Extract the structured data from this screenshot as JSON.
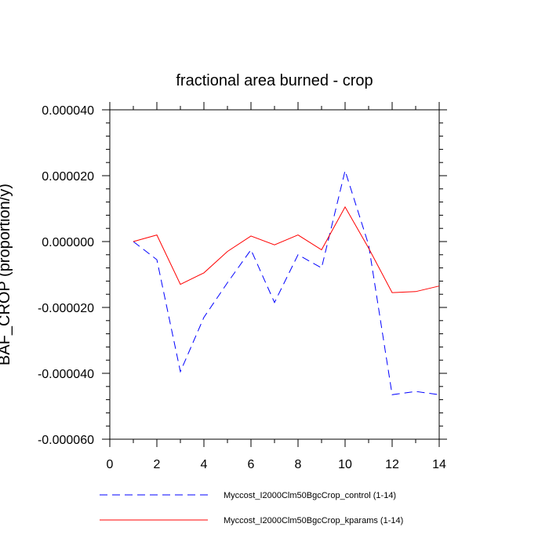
{
  "chart_data": {
    "type": "line",
    "title": "fractional area burned - crop",
    "xlabel": "",
    "ylabel": "BAF_CROP  (proportion/y)",
    "xlim": [
      0,
      14
    ],
    "ylim": [
      -6e-05,
      4e-05
    ],
    "x_ticks": [
      0,
      2,
      4,
      6,
      8,
      10,
      12,
      14
    ],
    "x_tick_labels": [
      "0",
      "2",
      "4",
      "6",
      "8",
      "10",
      "12",
      "14"
    ],
    "y_ticks": [
      -6e-05,
      -4e-05,
      -2e-05,
      0,
      2e-05,
      4e-05
    ],
    "y_tick_labels": [
      "-0.000060",
      "-0.000040",
      "-0.000020",
      "0.000000",
      "0.000020",
      "0.000040"
    ],
    "grid": false,
    "legend_position": "bottom",
    "x": [
      1,
      2,
      3,
      4,
      5,
      6,
      7,
      8,
      9,
      10,
      11,
      12,
      13,
      14
    ],
    "series": [
      {
        "name": "Myccost_I2000Clm50BgcCrop_control (1-14)",
        "color": "#0000ff",
        "style": "dashed",
        "values": [
          0.0,
          -5.5e-06,
          -3.95e-05,
          -2.3e-05,
          -1.25e-05,
          -2.5e-06,
          -1.85e-05,
          -4e-06,
          -8e-06,
          2.15e-05,
          -1e-06,
          -4.65e-05,
          -4.55e-05,
          -4.65e-05
        ]
      },
      {
        "name": "Myccost_I2000Clm50BgcCrop_kparams (1-14)",
        "color": "#ff0000",
        "style": "solid",
        "values": [
          0.0,
          2e-06,
          -1.3e-05,
          -9.5e-06,
          -3e-06,
          1.7e-06,
          -1e-06,
          2e-06,
          -2.5e-06,
          1.05e-05,
          -2e-06,
          -1.55e-05,
          -1.52e-05,
          -1.35e-05
        ]
      }
    ]
  }
}
